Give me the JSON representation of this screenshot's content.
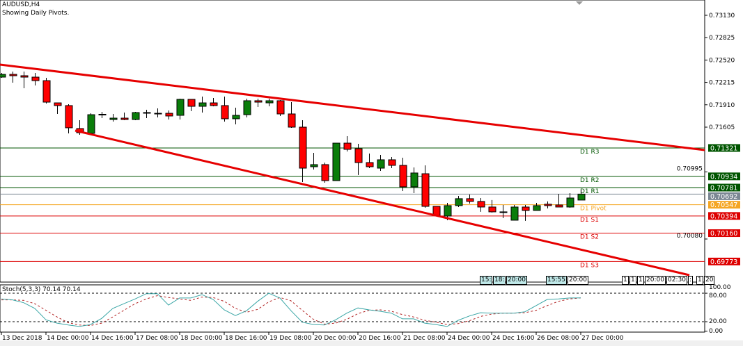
{
  "header": {
    "symbol": "AUDUSD,H4",
    "subtitle": "Showing Daily Pivots."
  },
  "colors": {
    "bull": "#0a7d0a",
    "bear": "#ff0000",
    "trendline": "#e60000",
    "resistance": "#005500",
    "pivot": "#f5a623",
    "support": "#dd0000",
    "current": "#7b8793",
    "stoch_main": "#3aa6a6",
    "stoch_signal": "#b22222"
  },
  "price_axis": {
    "ticks": [
      "0.73130",
      "0.72825",
      "0.72520",
      "0.72215",
      "0.71910",
      "0.71605",
      "0.70995",
      "0.70080"
    ]
  },
  "current_price": {
    "value": 0.70692,
    "label": "0.70692"
  },
  "levels": [
    {
      "name": "D1 R3",
      "value": 0.71321,
      "label": "0.71321",
      "kind": "resistance"
    },
    {
      "name": "D1 R2",
      "value": 0.70934,
      "label": "0.70934",
      "kind": "resistance"
    },
    {
      "name": "D1 R1",
      "value": 0.70781,
      "label": "0.70781",
      "kind": "resistance"
    },
    {
      "name": "D1 Pivot",
      "value": 0.70547,
      "label": "0.70547",
      "kind": "pivot"
    },
    {
      "name": "D1 S1",
      "value": 0.70394,
      "label": "0.70394",
      "kind": "support"
    },
    {
      "name": "D1 S2",
      "value": 0.7016,
      "label": "0.70160",
      "kind": "support"
    },
    {
      "name": "D1 S3",
      "value": 0.69773,
      "label": "0.69773",
      "kind": "support"
    }
  ],
  "candles": [
    [
      0.72287,
      0.72344,
      0.72277,
      0.72325
    ],
    [
      0.72325,
      0.72363,
      0.72211,
      0.72306
    ],
    [
      0.72306,
      0.72363,
      0.72135,
      0.72287
    ],
    [
      0.72287,
      0.72344,
      0.72173,
      0.72239
    ],
    [
      0.72239,
      0.72277,
      0.71927,
      0.71946
    ],
    [
      0.71936,
      0.71936,
      0.71785,
      0.71899
    ],
    [
      0.71899,
      0.71917,
      0.7152,
      0.71596
    ],
    [
      0.71586,
      0.717,
      0.71501,
      0.71529
    ],
    [
      0.7152,
      0.71794,
      0.7151,
      0.71775
    ],
    [
      0.71771,
      0.71813,
      0.71728,
      0.7178
    ],
    [
      0.71709,
      0.71785,
      0.71681,
      0.71728
    ],
    [
      0.71728,
      0.71804,
      0.717,
      0.71709
    ],
    [
      0.71709,
      0.71813,
      0.717,
      0.71804
    ],
    [
      0.71804,
      0.71842,
      0.71728,
      0.71804
    ],
    [
      0.71794,
      0.71861,
      0.71738,
      0.71794
    ],
    [
      0.71794,
      0.71832,
      0.71709,
      0.71757
    ],
    [
      0.71766,
      0.71993,
      0.71709,
      0.71984
    ],
    [
      0.71984,
      0.71984,
      0.71823,
      0.71889
    ],
    [
      0.71889,
      0.72022,
      0.71804,
      0.71936
    ],
    [
      0.71936,
      0.72003,
      0.71889,
      0.71899
    ],
    [
      0.71899,
      0.72022,
      0.71681,
      0.71719
    ],
    [
      0.71719,
      0.7187,
      0.71643,
      0.71766
    ],
    [
      0.71775,
      0.71993,
      0.71738,
      0.71965
    ],
    [
      0.71965,
      0.71993,
      0.7188,
      0.71946
    ],
    [
      0.71936,
      0.71993,
      0.71889,
      0.71965
    ],
    [
      0.71965,
      0.71974,
      0.71757,
      0.71785
    ],
    [
      0.71785,
      0.71946,
      0.71596,
      0.71605
    ],
    [
      0.71605,
      0.717,
      0.70857,
      0.71046
    ],
    [
      0.71065,
      0.71255,
      0.71027,
      0.71094
    ],
    [
      0.71094,
      0.71122,
      0.70847,
      0.70876
    ],
    [
      0.70876,
      0.71387,
      0.70876,
      0.71387
    ],
    [
      0.71387,
      0.71482,
      0.71274,
      0.71302
    ],
    [
      0.71311,
      0.71378,
      0.70952,
      0.71122
    ],
    [
      0.71122,
      0.71245,
      0.71046,
      0.71065
    ],
    [
      0.71046,
      0.71226,
      0.71008,
      0.7116
    ],
    [
      0.7116,
      0.71198,
      0.71046,
      0.71084
    ],
    [
      0.71084,
      0.71188,
      0.70734,
      0.70791
    ],
    [
      0.70791,
      0.71056,
      0.70705,
      0.7098
    ],
    [
      0.7097,
      0.71084,
      0.70506,
      0.70525
    ],
    [
      0.70525,
      0.70525,
      0.70402,
      0.70402
    ],
    [
      0.70393,
      0.70573,
      0.70336,
      0.70535
    ],
    [
      0.70535,
      0.70667,
      0.70516,
      0.7063
    ],
    [
      0.7063,
      0.70686,
      0.70563,
      0.70592
    ],
    [
      0.70592,
      0.70639,
      0.7045,
      0.70516
    ],
    [
      0.70516,
      0.70611,
      0.7044,
      0.7045
    ],
    [
      0.7045,
      0.70544,
      0.70364,
      0.7045
    ],
    [
      0.70336,
      0.70544,
      0.70336,
      0.70516
    ],
    [
      0.70516,
      0.70544,
      0.70327,
      0.70469
    ],
    [
      0.70469,
      0.70573,
      0.70469,
      0.70535
    ],
    [
      0.70554,
      0.70592,
      0.70497,
      0.70535
    ],
    [
      0.70544,
      0.70696,
      0.70516,
      0.70516
    ],
    [
      0.70516,
      0.70705,
      0.70506,
      0.70639
    ],
    [
      0.70611,
      0.70753,
      0.70611,
      0.70692
    ]
  ],
  "stochastic": {
    "label": "Stoch(5,3,3) 70.14 70.14",
    "levels_labels": [
      "100.00",
      "80.00",
      "20.00",
      "0.00"
    ],
    "main": [
      68,
      66,
      60,
      48,
      24,
      17,
      13,
      10,
      14,
      27,
      48,
      58,
      68,
      79,
      79,
      55,
      70,
      70,
      77,
      67,
      45,
      33,
      43,
      63,
      80,
      70,
      43,
      19,
      14,
      13,
      24,
      38,
      49,
      45,
      42,
      38,
      26,
      26,
      17,
      14,
      10,
      23,
      32,
      39,
      38,
      38,
      38,
      41,
      54,
      67,
      68,
      70,
      70.14
    ],
    "signal": [
      66,
      66,
      65,
      58,
      44,
      30,
      18,
      13,
      12,
      17,
      30,
      44,
      58,
      68,
      75,
      71,
      68,
      65,
      72,
      71,
      63,
      48,
      40,
      46,
      62,
      71,
      64,
      44,
      25,
      15,
      17,
      25,
      37,
      44,
      45,
      42,
      35,
      30,
      23,
      19,
      14,
      16,
      22,
      31,
      36,
      38,
      38,
      39,
      44,
      54,
      63,
      68,
      70.14
    ]
  },
  "time_axis": {
    "labels": [
      {
        "candle": 0,
        "text": "13 Dec 2018"
      },
      {
        "candle": 4,
        "text": "14 Dec 00:00"
      },
      {
        "candle": 8,
        "text": "14 Dec 16:00"
      },
      {
        "candle": 12,
        "text": "17 Dec 08:00"
      },
      {
        "candle": 16,
        "text": "18 Dec 00:00"
      },
      {
        "candle": 20,
        "text": "18 Dec 16:00"
      },
      {
        "candle": 24,
        "text": "19 Dec 08:00"
      },
      {
        "candle": 28,
        "text": "20 Dec 00:00"
      },
      {
        "candle": 32,
        "text": "20 Dec 16:00"
      },
      {
        "candle": 36,
        "text": "21 Dec 08:00"
      },
      {
        "candle": 40,
        "text": "24 Dec 00:00"
      },
      {
        "candle": 44,
        "text": "24 Dec 16:00"
      },
      {
        "candle": 48,
        "text": "26 Dec 08:00"
      },
      {
        "candle": 52,
        "text": "27 Dec 00:00"
      }
    ]
  },
  "vline_labels": [
    "15:",
    "18:",
    "20:00",
    "15:55",
    "20:00",
    "1",
    "1",
    "1",
    "20:00",
    "02:30",
    ":",
    "1",
    "20"
  ]
}
